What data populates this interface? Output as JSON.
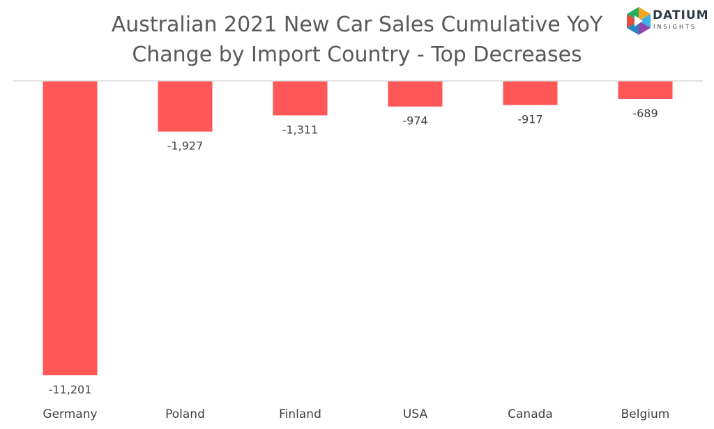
{
  "chart_data": {
    "type": "bar",
    "title_lines": [
      "Australian 2021 New Car Sales Cumulative YoY",
      "Change by Import Country - Top Decreases"
    ],
    "categories": [
      "Germany",
      "Poland",
      "Finland",
      "USA",
      "Canada",
      "Belgium"
    ],
    "values": [
      -11201,
      -1927,
      -1311,
      -974,
      -917,
      -689
    ],
    "data_labels": [
      "-11,201",
      "-1,927",
      "-1,311",
      "-974",
      "-917",
      "-689"
    ],
    "xlabel": "",
    "ylabel": "",
    "ylim": [
      -11201,
      0
    ],
    "grid": false,
    "legend": "none",
    "bar_color": "#FF5757",
    "axis_color": "#D9D9D9"
  },
  "logo": {
    "name": "DATIUM",
    "tagline": "INSIGHTS",
    "colors": [
      "#E84C3D",
      "#F5A623",
      "#3DB1E8",
      "#8E44AD"
    ]
  }
}
